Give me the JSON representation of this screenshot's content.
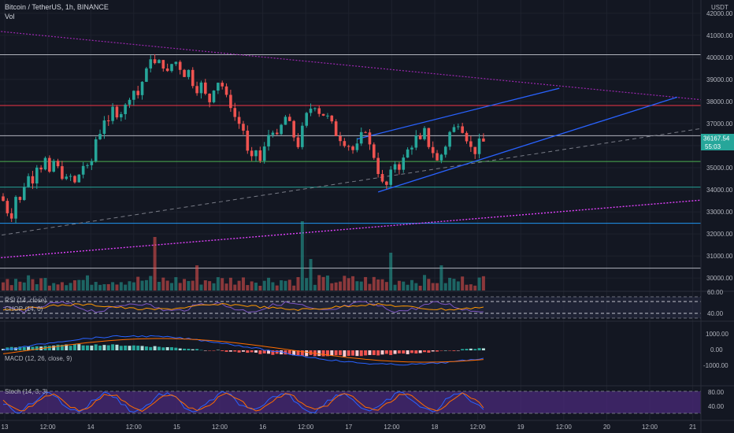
{
  "header": {
    "symbol": "Bitcoin / TetherUS, 1h, BINANCE",
    "vol_label": "Vol",
    "currency": "USDT"
  },
  "price_axis": {
    "ticks": [
      "42000.00",
      "41000.00",
      "40000.00",
      "39000.00",
      "38000.00",
      "37000.00",
      "35000.00",
      "34000.00",
      "33000.00",
      "32000.00",
      "31000.00",
      "30000.00"
    ],
    "last_price": "36167.54",
    "countdown": "55:03",
    "last_price_color": "#26a69a"
  },
  "time_axis": {
    "labels": [
      "13",
      "12:00",
      "14",
      "12:00",
      "15",
      "12:00",
      "16",
      "12:00",
      "17",
      "12:00",
      "18",
      "12:00",
      "19",
      "12:00",
      "20",
      "12:00",
      "21"
    ]
  },
  "chart_data": {
    "type": "candlestick",
    "x_unit": "hour",
    "x_start": "13 12:00",
    "ylim": [
      29400,
      42600
    ],
    "grid": true,
    "anchors": [
      [
        0,
        33500
      ],
      [
        1,
        33000
      ],
      [
        2,
        32800
      ],
      [
        3,
        33700
      ],
      [
        4,
        33500
      ],
      [
        5,
        34200
      ],
      [
        6,
        34600
      ],
      [
        7,
        34400
      ],
      [
        8,
        35100
      ],
      [
        9,
        35000
      ],
      [
        10,
        35400
      ],
      [
        11,
        34700
      ],
      [
        12,
        35300
      ],
      [
        13,
        35000
      ],
      [
        14,
        34600
      ],
      [
        15,
        34500
      ],
      [
        16,
        34600
      ],
      [
        17,
        34300
      ],
      [
        18,
        34700
      ],
      [
        19,
        35100
      ],
      [
        20,
        35000
      ],
      [
        21,
        35300
      ],
      [
        22,
        36300
      ],
      [
        23,
        36600
      ],
      [
        24,
        37200
      ],
      [
        25,
        37000
      ],
      [
        26,
        37700
      ],
      [
        27,
        37400
      ],
      [
        28,
        37500
      ],
      [
        29,
        37800
      ],
      [
        30,
        38200
      ],
      [
        31,
        38500
      ],
      [
        32,
        38300
      ],
      [
        33,
        38900
      ],
      [
        34,
        39400
      ],
      [
        35,
        40000
      ],
      [
        36,
        39700
      ],
      [
        37,
        39800
      ],
      [
        38,
        39600
      ],
      [
        39,
        39300
      ],
      [
        40,
        39700
      ],
      [
        41,
        39800
      ],
      [
        42,
        39500
      ],
      [
        43,
        39200
      ],
      [
        44,
        39400
      ],
      [
        45,
        38800
      ],
      [
        46,
        38500
      ],
      [
        47,
        38800
      ],
      [
        48,
        38300
      ],
      [
        49,
        38000
      ],
      [
        50,
        38600
      ],
      [
        51,
        38900
      ],
      [
        52,
        38700
      ],
      [
        53,
        38200
      ],
      [
        54,
        37800
      ],
      [
        55,
        37300
      ],
      [
        56,
        37000
      ],
      [
        57,
        36700
      ],
      [
        58,
        35700
      ],
      [
        59,
        35400
      ],
      [
        60,
        35800
      ],
      [
        61,
        35300
      ],
      [
        62,
        35900
      ],
      [
        63,
        36500
      ],
      [
        64,
        36700
      ],
      [
        65,
        36400
      ],
      [
        66,
        36900
      ],
      [
        67,
        37300
      ],
      [
        68,
        37000
      ],
      [
        69,
        36400
      ],
      [
        70,
        36000
      ],
      [
        71,
        36800
      ],
      [
        72,
        37400
      ],
      [
        73,
        37700
      ],
      [
        74,
        37800
      ],
      [
        75,
        37500
      ],
      [
        76,
        37400
      ],
      [
        77,
        37300
      ],
      [
        78,
        37000
      ],
      [
        79,
        36500
      ],
      [
        80,
        36300
      ],
      [
        81,
        36100
      ],
      [
        82,
        36000
      ],
      [
        83,
        35800
      ],
      [
        84,
        36000
      ],
      [
        85,
        36500
      ],
      [
        86,
        36700
      ],
      [
        87,
        36000
      ],
      [
        88,
        35500
      ],
      [
        89,
        34800
      ],
      [
        90,
        34300
      ],
      [
        91,
        34200
      ],
      [
        92,
        34800
      ],
      [
        93,
        35200
      ],
      [
        94,
        35000
      ],
      [
        95,
        35400
      ],
      [
        96,
        35800
      ],
      [
        97,
        36000
      ],
      [
        98,
        36400
      ],
      [
        99,
        36200
      ],
      [
        100,
        36700
      ],
      [
        101,
        36000
      ],
      [
        102,
        35700
      ],
      [
        103,
        35300
      ],
      [
        104,
        35600
      ],
      [
        105,
        36000
      ],
      [
        106,
        36600
      ],
      [
        107,
        36800
      ],
      [
        108,
        37000
      ],
      [
        109,
        36700
      ],
      [
        110,
        36300
      ],
      [
        111,
        35900
      ],
      [
        112,
        35700
      ],
      [
        113,
        36200
      ],
      [
        114,
        36167
      ]
    ],
    "volume": {
      "axis_ticks": [],
      "tall_bars": [
        [
          36,
          17
        ],
        [
          46,
          8
        ],
        [
          71,
          22
        ],
        [
          73,
          10
        ],
        [
          104,
          8
        ],
        [
          92,
          12
        ]
      ]
    },
    "levels": [
      {
        "price": 40120,
        "color": "#b2b5be"
      },
      {
        "price": 37820,
        "color": "#f23645"
      },
      {
        "price": 36450,
        "color": "#b2b5be"
      },
      {
        "price": 35280,
        "color": "#4caf50"
      },
      {
        "price": 34120,
        "color": "#26a69a"
      },
      {
        "price": 32480,
        "color": "#2196f3"
      },
      {
        "price": 30450,
        "color": "#b2b5be"
      }
    ],
    "rsi": {
      "label": "RSI (14, close)",
      "ticks": [
        "60.00",
        "40.00"
      ]
    },
    "chop": {
      "label": "CHOP (14, 0)"
    },
    "macd": {
      "label": "MACD (12, 26, close, 9)",
      "ticks": [
        "1000.00",
        "0.00",
        "-1000.00"
      ]
    },
    "stoch": {
      "label": "Stoch (14, 3, 3)",
      "ticks": [
        "80.00",
        "40.00"
      ]
    }
  }
}
